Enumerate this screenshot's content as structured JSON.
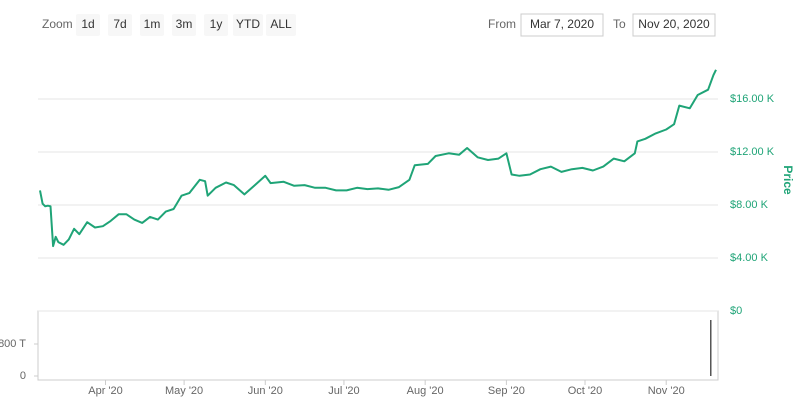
{
  "range_selector": {
    "zoom_label": "Zoom",
    "buttons": [
      "1d",
      "7d",
      "1m",
      "3m",
      "1y",
      "YTD",
      "ALL"
    ],
    "from_label": "From",
    "from": "Mar 7, 2020",
    "to_label": "To",
    "to": "Nov 20, 2020"
  },
  "chart_data": {
    "type": "line",
    "ylabel": "Price",
    "color": "#1fa477",
    "x": [
      "2020-03-07",
      "2020-03-08",
      "2020-03-09",
      "2020-03-10",
      "2020-03-11",
      "2020-03-12",
      "2020-03-13",
      "2020-03-14",
      "2020-03-16",
      "2020-03-18",
      "2020-03-20",
      "2020-03-22",
      "2020-03-25",
      "2020-03-28",
      "2020-03-31",
      "2020-04-03",
      "2020-04-06",
      "2020-04-09",
      "2020-04-12",
      "2020-04-15",
      "2020-04-18",
      "2020-04-21",
      "2020-04-24",
      "2020-04-27",
      "2020-04-30",
      "2020-05-03",
      "2020-05-07",
      "2020-05-09",
      "2020-05-10",
      "2020-05-13",
      "2020-05-17",
      "2020-05-20",
      "2020-05-24",
      "2020-05-28",
      "2020-06-01",
      "2020-06-03",
      "2020-06-08",
      "2020-06-12",
      "2020-06-16",
      "2020-06-20",
      "2020-06-24",
      "2020-06-28",
      "2020-07-02",
      "2020-07-06",
      "2020-07-10",
      "2020-07-14",
      "2020-07-18",
      "2020-07-22",
      "2020-07-26",
      "2020-07-28",
      "2020-08-02",
      "2020-08-05",
      "2020-08-10",
      "2020-08-14",
      "2020-08-17",
      "2020-08-21",
      "2020-08-25",
      "2020-08-29",
      "2020-09-01",
      "2020-09-03",
      "2020-09-06",
      "2020-09-10",
      "2020-09-14",
      "2020-09-18",
      "2020-09-22",
      "2020-09-26",
      "2020-09-30",
      "2020-10-04",
      "2020-10-08",
      "2020-10-12",
      "2020-10-16",
      "2020-10-20",
      "2020-10-21",
      "2020-10-24",
      "2020-10-28",
      "2020-11-01",
      "2020-11-04",
      "2020-11-06",
      "2020-11-10",
      "2020-11-13",
      "2020-11-17",
      "2020-11-19",
      "2020-11-20"
    ],
    "values": [
      9100,
      8100,
      7900,
      7950,
      7900,
      4900,
      5600,
      5200,
      5000,
      5400,
      6200,
      5800,
      6700,
      6300,
      6400,
      6800,
      7300,
      7300,
      6900,
      6650,
      7100,
      6900,
      7500,
      7700,
      8700,
      8900,
      9900,
      9800,
      8700,
      9300,
      9700,
      9500,
      8800,
      9500,
      10200,
      9650,
      9750,
      9450,
      9500,
      9300,
      9300,
      9100,
      9100,
      9300,
      9200,
      9250,
      9150,
      9350,
      9900,
      11000,
      11100,
      11700,
      11900,
      11800,
      12300,
      11600,
      11400,
      11500,
      11900,
      10300,
      10200,
      10300,
      10700,
      10900,
      10500,
      10700,
      10800,
      10600,
      10900,
      11500,
      11300,
      11900,
      12800,
      13000,
      13400,
      13700,
      14100,
      15500,
      15300,
      16300,
      16700,
      17800,
      18200
    ],
    "xlim": [
      "2020-03-07",
      "2020-11-20"
    ],
    "xticks": [
      {
        "value": "2020-04",
        "label": "Apr '20"
      },
      {
        "value": "2020-05",
        "label": "May '20"
      },
      {
        "value": "2020-06",
        "label": "Jun '20"
      },
      {
        "value": "2020-07",
        "label": "Jul '20"
      },
      {
        "value": "2020-08",
        "label": "Aug '20"
      },
      {
        "value": "2020-09",
        "label": "Sep '20"
      },
      {
        "value": "2020-10",
        "label": "Oct '20"
      },
      {
        "value": "2020-11",
        "label": "Nov '20"
      }
    ],
    "ylim": [
      0,
      20000
    ],
    "yticks": [
      {
        "value": 0,
        "label": "$0"
      },
      {
        "value": 4000,
        "label": "$4.00 K"
      },
      {
        "value": 8000,
        "label": "$8.00 K"
      },
      {
        "value": 12000,
        "label": "$12.00 K"
      },
      {
        "value": 16000,
        "label": "$16.00 K"
      }
    ],
    "grid": true,
    "volume": {
      "type": "bar",
      "color": "#555555",
      "x": [
        "2020-11-18"
      ],
      "values": [
        1400
      ],
      "ylim": [
        0,
        1600
      ],
      "yticks": [
        0,
        {
          "value": 800,
          "label": "800 T"
        }
      ]
    }
  }
}
